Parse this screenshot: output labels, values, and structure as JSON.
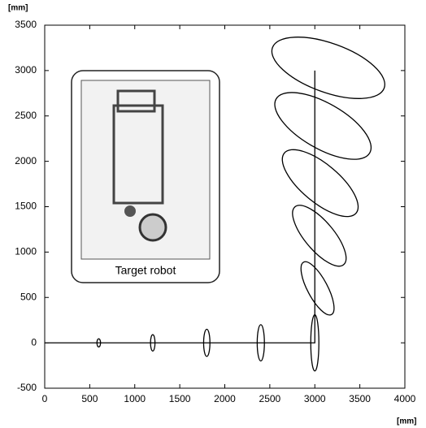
{
  "chart_data": {
    "type": "line",
    "x_label": "[mm]",
    "y_label": "[mm]",
    "annotation": "Target robot",
    "x": [
      0,
      3000,
      3000
    ],
    "y": [
      0,
      0,
      3000
    ],
    "color": "#000000",
    "ellipses": [
      {
        "cx": 600,
        "cy": 0,
        "rx": 20,
        "ry": 45,
        "angle": 0
      },
      {
        "cx": 1200,
        "cy": 0,
        "rx": 25,
        "ry": 90,
        "angle": 0
      },
      {
        "cx": 1800,
        "cy": 0,
        "rx": 35,
        "ry": 150,
        "angle": 0
      },
      {
        "cx": 2400,
        "cy": 0,
        "rx": 40,
        "ry": 200,
        "angle": 0
      },
      {
        "cx": 3000,
        "cy": 0,
        "rx": 45,
        "ry": 310,
        "angle": 0
      },
      {
        "cx": 3030,
        "cy": 600,
        "rx": 330,
        "ry": 110,
        "angle": -62
      },
      {
        "cx": 3050,
        "cy": 1180,
        "rx": 420,
        "ry": 160,
        "angle": -50
      },
      {
        "cx": 3060,
        "cy": 1760,
        "rx": 520,
        "ry": 210,
        "angle": -40
      },
      {
        "cx": 3090,
        "cy": 2390,
        "rx": 600,
        "ry": 250,
        "angle": -30
      },
      {
        "cx": 3150,
        "cy": 3030,
        "rx": 660,
        "ry": 270,
        "angle": -20
      }
    ],
    "xlim": [
      0,
      4000
    ],
    "xticks": [
      0,
      500,
      1000,
      1500,
      2000,
      2500,
      3000,
      3500,
      4000
    ],
    "ylim": [
      -500,
      3500
    ],
    "yticks": [
      -500,
      0,
      500,
      1000,
      1500,
      2000,
      2500,
      3000,
      3500
    ]
  }
}
